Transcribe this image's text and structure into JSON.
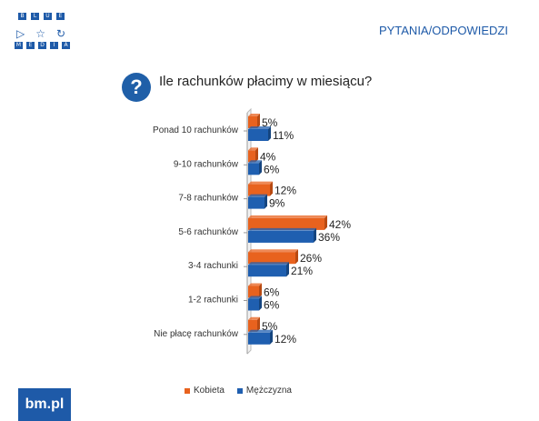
{
  "header": {
    "section_title": "PYTANIA/ODPOWIEDZI"
  },
  "logo": {
    "letters_top": [
      "B",
      "L",
      "U",
      "E"
    ],
    "letters_bottom": [
      "M",
      "E",
      "D",
      "I",
      "A"
    ],
    "icons": [
      "play-icon",
      "star-icon",
      "refresh-icon"
    ]
  },
  "question": {
    "icon_text": "?",
    "text": "Ile rachunków płacimy w miesiącu?"
  },
  "footer": {
    "brand": "bm.pl"
  },
  "colors": {
    "kobieta": "#e8621e",
    "mezczyzna": "#1f5fb0",
    "accent": "#1e5aa8"
  },
  "chart_data": {
    "type": "bar",
    "orientation": "horizontal",
    "categories": [
      "Ponad 10 rachunków",
      "9-10 rachunków",
      "7-8 rachunków",
      "5-6 rachunków",
      "3-4 rachunki",
      "1-2 rachunki",
      "Nie płacę rachunków"
    ],
    "series": [
      {
        "name": "Kobieta",
        "values": [
          5,
          4,
          12,
          42,
          26,
          6,
          5
        ],
        "labels": [
          "5%",
          "4%",
          "12%",
          "42%",
          "26%",
          "6%",
          "5%"
        ]
      },
      {
        "name": "Mężczyzna",
        "values": [
          11,
          6,
          9,
          36,
          21,
          6,
          12
        ],
        "labels": [
          "11%",
          "6%",
          "9%",
          "36%",
          "21%",
          "6%",
          "12%"
        ]
      }
    ],
    "legend_position": "bottom",
    "grid": false,
    "xlim": [
      0,
      45
    ]
  }
}
